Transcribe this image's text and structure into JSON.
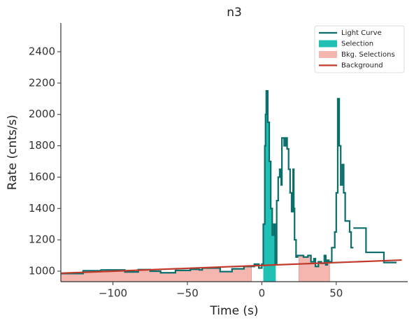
{
  "chart_data": {
    "type": "line",
    "title": "n3",
    "x_label": "Time (s)",
    "y_label": "Rate (cnts/s)",
    "x": [
      -135,
      -120,
      -108,
      -92,
      -83,
      -75,
      -68,
      -58,
      -48,
      -42,
      -40,
      -28,
      -20,
      -12,
      -5,
      -2,
      0,
      1,
      2,
      2.5,
      3,
      4,
      5,
      6,
      7,
      8,
      9,
      10,
      11,
      12,
      13,
      13.5,
      15,
      16,
      17,
      18,
      19,
      20,
      21,
      21.5,
      22,
      23,
      24,
      28,
      31,
      33,
      35,
      36,
      38,
      40,
      42,
      43,
      44,
      45,
      47,
      49,
      50,
      51,
      52,
      53,
      54,
      55,
      56,
      59,
      60,
      61,
      62,
      70,
      82,
      90
    ],
    "series": [
      {
        "name": "Light Curve",
        "color": "#0b6e6b",
        "step": "post",
        "values": [
          985,
          1003,
          1008,
          995,
          1010,
          1000,
          990,
          1005,
          1012,
          1008,
          1020,
          997,
          1015,
          1030,
          1045,
          1020,
          1045,
          1300,
          1800,
          2000,
          2150,
          1950,
          1700,
          1400,
          1230,
          1300,
          1050,
          1450,
          1600,
          1650,
          1550,
          1850,
          1800,
          1850,
          1780,
          1650,
          1500,
          1380,
          1650,
          1400,
          1200,
          1090,
          1100,
          1090,
          1100,
          1060,
          1080,
          1030,
          1060,
          1050,
          1100,
          1040,
          1070,
          1060,
          1150,
          1250,
          1500,
          2100,
          1800,
          1550,
          1680,
          1500,
          1320,
          1250,
          1150,
          null,
          1275,
          1120,
          1055,
          1055
        ]
      }
    ],
    "selection": {
      "name": "Selection",
      "color": "#20c0b4",
      "range": [
        1,
        9.4
      ]
    },
    "bkg_selections": {
      "name": "Bkg. Selections",
      "color": "#f4b6ae",
      "ranges": [
        [
          -135,
          -7
        ],
        [
          25,
          45.5
        ]
      ]
    },
    "background": {
      "name": "Background",
      "color": "#c0392b",
      "x": [
        -135,
        94
      ],
      "values": [
        987,
        1071
      ]
    },
    "xlim": [
      -135,
      98
    ],
    "ylim": [
      933,
      2583
    ],
    "xticks": [
      {
        "value": -100,
        "label": "−100"
      },
      {
        "value": -50,
        "label": "−50"
      },
      0,
      50
    ],
    "yticks": [
      1000,
      1200,
      1400,
      1600,
      1800,
      2000,
      2200,
      2400
    ],
    "legend": "upper right"
  }
}
